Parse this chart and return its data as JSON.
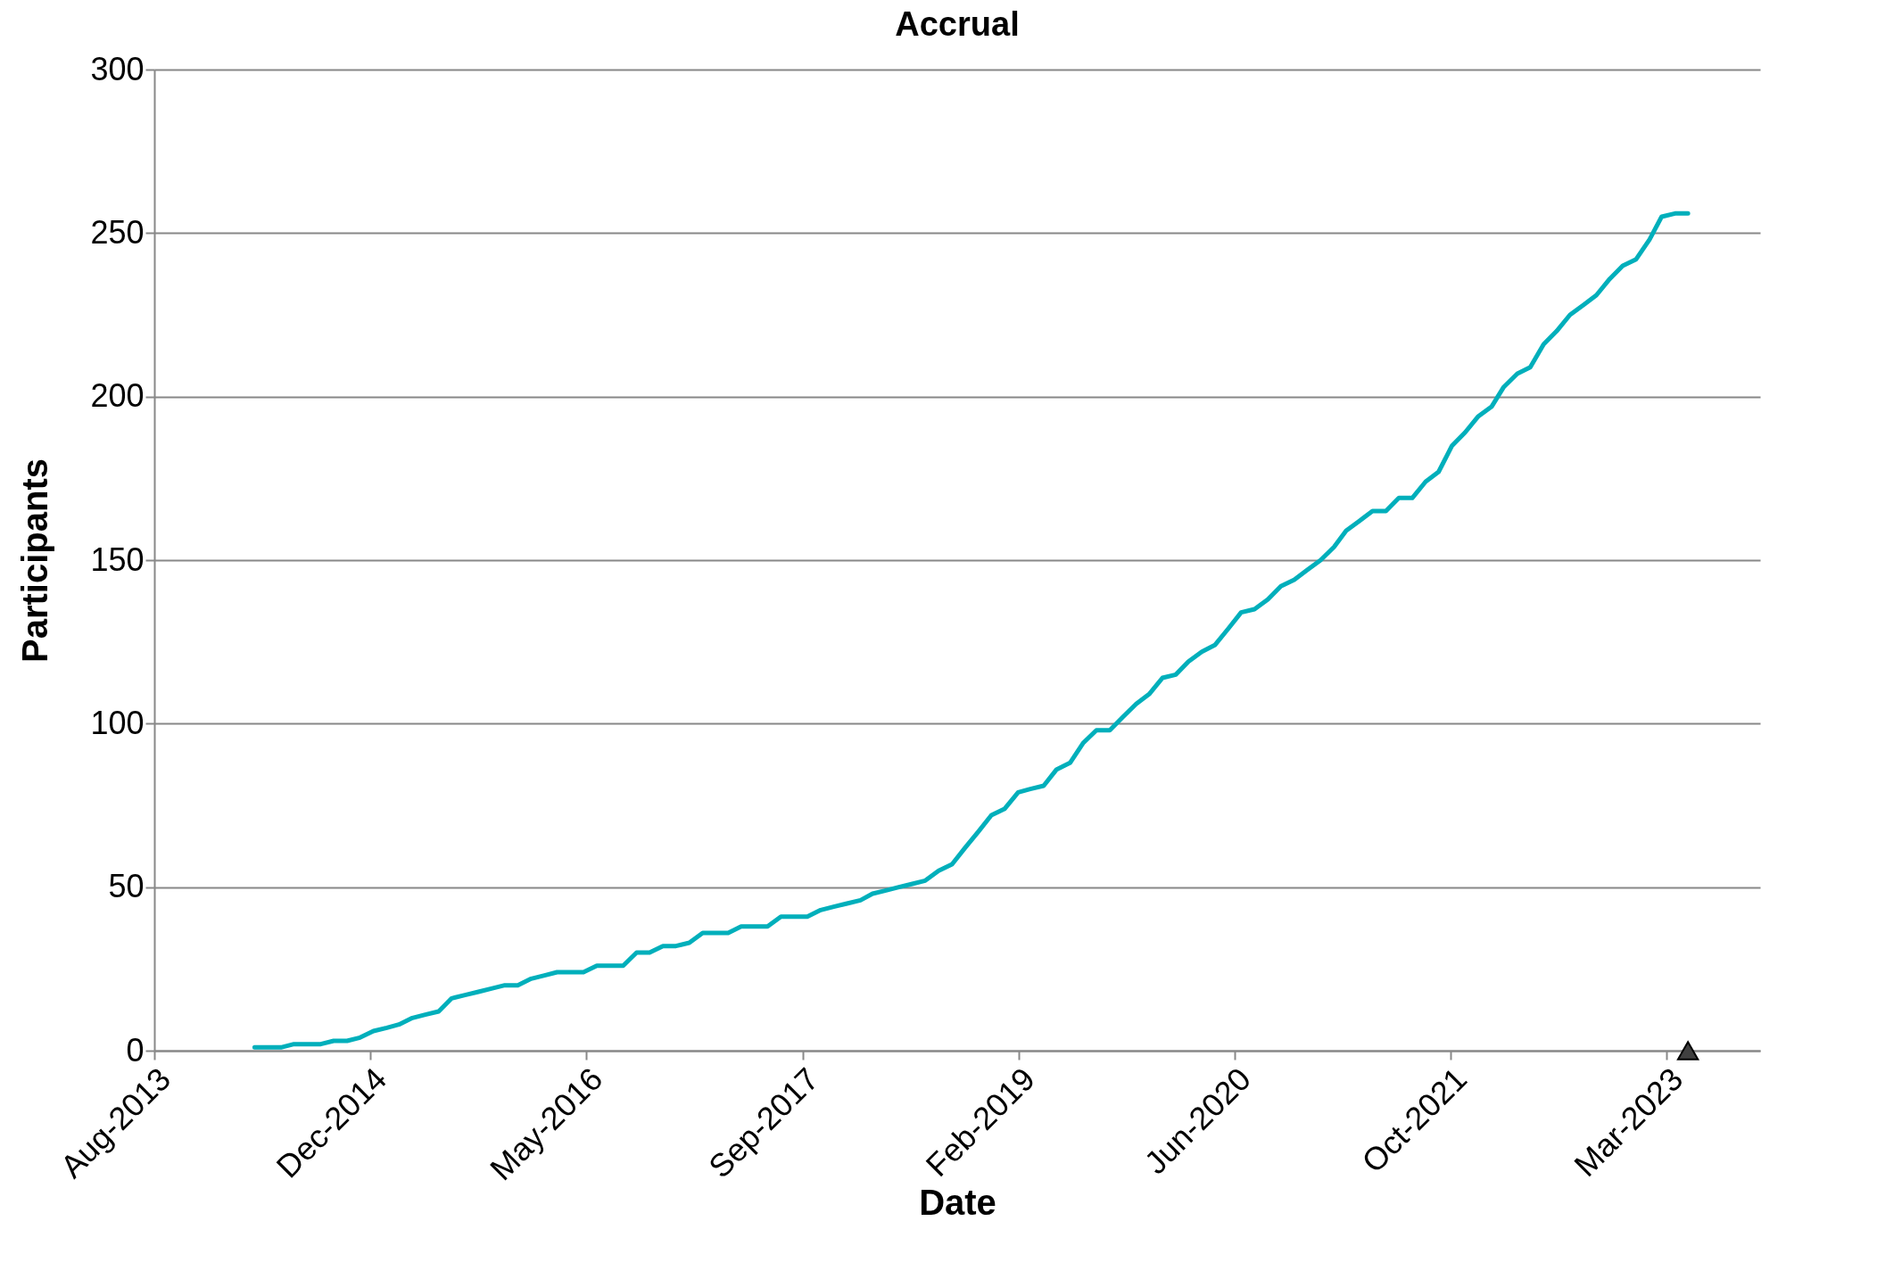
{
  "chart_data": {
    "type": "line",
    "title": "Accrual",
    "xlabel": "Date",
    "ylabel": "Participants",
    "xlim": [
      "2013-08-12",
      "2023-10-15"
    ],
    "xticks": [
      {
        "value": "2013-08-12",
        "label": "Aug-2013"
      },
      {
        "value": "2014-12-25",
        "label": "Dec-2014"
      },
      {
        "value": "2016-05-08",
        "label": "May-2016"
      },
      {
        "value": "2017-09-20",
        "label": "Sep-2017"
      },
      {
        "value": "2019-02-02",
        "label": "Feb-2019"
      },
      {
        "value": "2020-06-16",
        "label": "Jun-2020"
      },
      {
        "value": "2021-10-29",
        "label": "Oct-2021"
      },
      {
        "value": "2023-03-13",
        "label": "Mar-2023"
      }
    ],
    "ylim": [
      0,
      300
    ],
    "yticks": [
      0,
      50,
      100,
      150,
      200,
      250,
      300
    ],
    "grid": "y",
    "line_style": "solid",
    "series": [
      {
        "type": "line",
        "color": "#00afbb",
        "x": [
          "2014-04",
          "2014-06",
          "2014-07",
          "2014-09",
          "2014-10",
          "2014-11",
          "2014-12",
          "2015-01",
          "2015-02",
          "2015-03",
          "2015-04",
          "2015-05",
          "2015-06",
          "2015-07",
          "2015-08",
          "2015-09",
          "2015-10",
          "2015-11",
          "2015-12",
          "2016-01",
          "2016-02",
          "2016-03",
          "2016-05",
          "2016-06",
          "2016-08",
          "2016-09",
          "2016-10",
          "2016-11",
          "2016-12",
          "2017-01",
          "2017-02",
          "2017-04",
          "2017-05",
          "2017-07",
          "2017-08",
          "2017-10",
          "2017-11",
          "2017-12",
          "2018-01",
          "2018-02",
          "2018-03",
          "2018-04",
          "2018-05",
          "2018-06",
          "2018-07",
          "2018-08",
          "2018-09",
          "2018-10",
          "2018-11",
          "2018-12",
          "2019-01",
          "2019-02",
          "2019-03",
          "2019-04",
          "2019-05",
          "2019-06",
          "2019-07",
          "2019-08",
          "2019-09",
          "2019-10",
          "2019-11",
          "2019-12",
          "2020-01",
          "2020-02",
          "2020-03",
          "2020-04",
          "2020-05",
          "2020-06",
          "2020-07",
          "2020-08",
          "2020-09",
          "2020-10",
          "2020-11",
          "2020-12",
          "2021-01",
          "2021-02",
          "2021-03",
          "2021-04",
          "2021-05",
          "2021-06",
          "2021-07",
          "2021-08",
          "2021-09",
          "2021-10",
          "2021-11",
          "2021-12",
          "2022-01",
          "2022-02",
          "2022-03",
          "2022-04",
          "2022-05",
          "2022-06",
          "2022-07",
          "2022-08",
          "2022-09",
          "2022-10",
          "2022-11",
          "2022-12",
          "2023-01",
          "2023-02",
          "2023-03",
          "2023-04",
          "2023-05"
        ],
        "values": [
          1,
          1,
          2,
          2,
          3,
          3,
          4,
          6,
          7,
          8,
          10,
          11,
          12,
          16,
          17,
          18,
          19,
          20,
          20,
          22,
          23,
          24,
          24,
          26,
          26,
          30,
          30,
          32,
          32,
          33,
          36,
          36,
          38,
          38,
          41,
          41,
          43,
          44,
          45,
          46,
          48,
          49,
          50,
          51,
          52,
          55,
          57,
          62,
          67,
          72,
          74,
          79,
          80,
          81,
          86,
          88,
          94,
          98,
          98,
          102,
          106,
          109,
          114,
          115,
          119,
          122,
          124,
          129,
          134,
          135,
          138,
          142,
          144,
          147,
          150,
          154,
          159,
          162,
          165,
          165,
          169,
          169,
          174,
          177,
          185,
          189,
          194,
          197,
          203,
          207,
          209,
          216,
          220,
          225,
          228,
          231,
          236,
          240,
          242,
          248,
          255,
          256,
          256
        ]
      },
      {
        "type": "scatter",
        "marker": "triangle",
        "color": "#404040",
        "x": [
          "2023-05"
        ],
        "values": [
          0
        ]
      }
    ]
  }
}
